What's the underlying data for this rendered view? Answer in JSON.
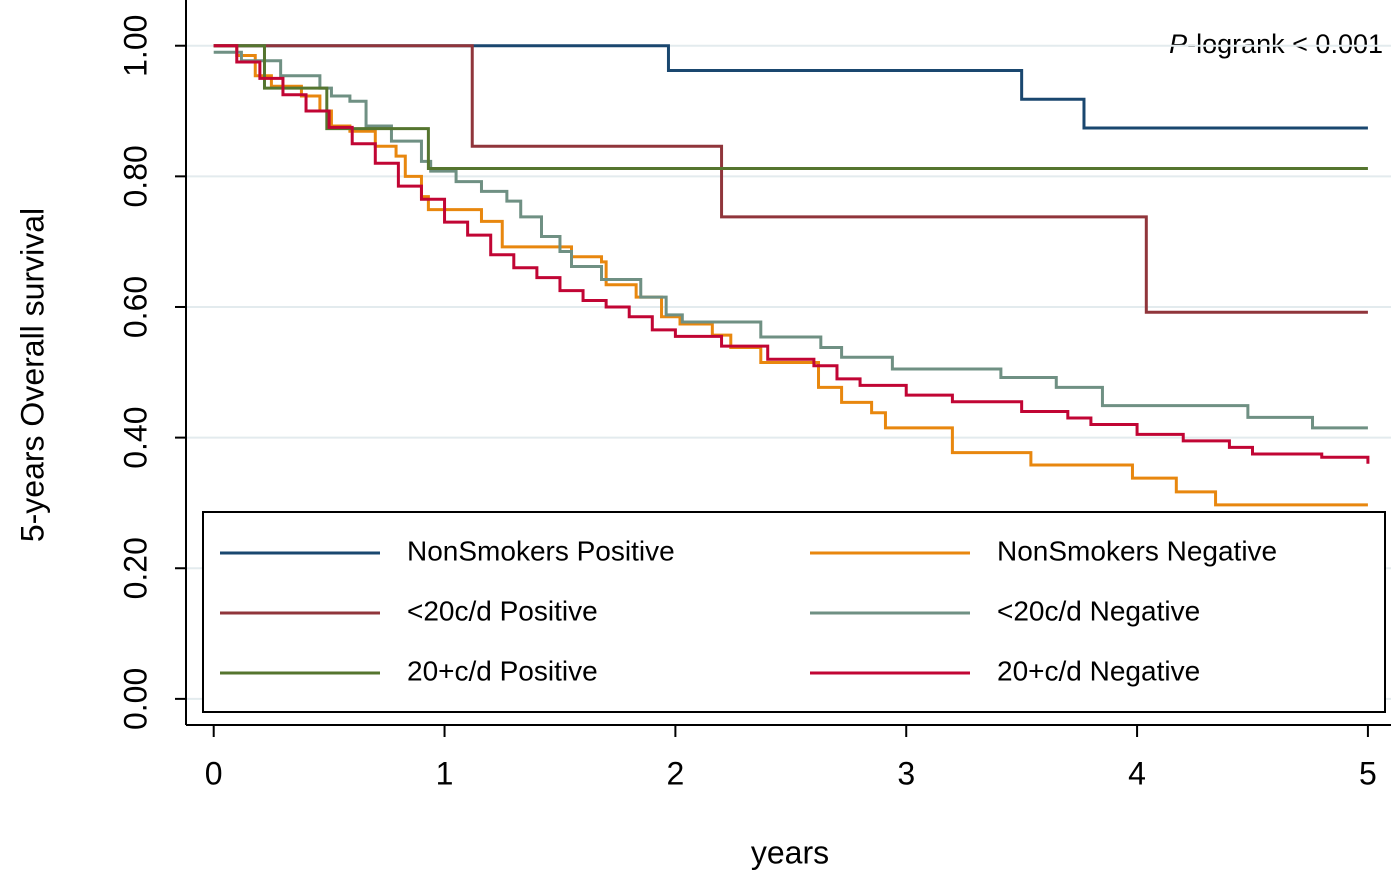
{
  "chart_data": {
    "type": "step",
    "xlabel": "years",
    "ylabel": "5-years Overall survival",
    "annotation": [
      "P",
      "-logrank < 0.001"
    ],
    "xlim": [
      -0.12,
      5.1
    ],
    "ylim": [
      -0.04,
      1.07
    ],
    "xticks": [
      0,
      1,
      2,
      3,
      4,
      5
    ],
    "yticks": [
      {
        "value": 0,
        "label": "0.00"
      },
      {
        "value": 0.2,
        "label": "0.20"
      },
      {
        "value": 0.4,
        "label": "0.40"
      },
      {
        "value": 0.6,
        "label": "0.60"
      },
      {
        "value": 0.8,
        "label": "0.80"
      },
      {
        "value": 1,
        "label": "1.00"
      }
    ],
    "grid": true,
    "legend": "bottom",
    "series": [
      {
        "name": "NonSmokers Positive",
        "color": "#1a476f",
        "x": [
          0,
          1.97,
          3.5,
          3.77,
          5
        ],
        "values": [
          1.0,
          0.962,
          0.918,
          0.874,
          0.874
        ]
      },
      {
        "name": "NonSmokers Negative",
        "color": "#e8870e",
        "x": [
          0,
          0.1,
          0.18,
          0.25,
          0.38,
          0.46,
          0.51,
          0.59,
          0.7,
          0.79,
          0.83,
          0.9,
          0.93,
          1.16,
          1.25,
          1.55,
          1.68,
          1.7,
          1.83,
          1.94,
          2.02,
          2.16,
          2.24,
          2.37,
          2.62,
          2.72,
          2.85,
          2.91,
          3.2,
          3.54,
          3.98,
          4.17,
          4.34,
          5
        ],
        "values": [
          1.0,
          0.985,
          0.954,
          0.938,
          0.923,
          0.9,
          0.877,
          0.869,
          0.846,
          0.831,
          0.8,
          0.769,
          0.749,
          0.731,
          0.692,
          0.677,
          0.669,
          0.634,
          0.615,
          0.585,
          0.574,
          0.557,
          0.538,
          0.515,
          0.477,
          0.454,
          0.438,
          0.415,
          0.377,
          0.358,
          0.338,
          0.317,
          0.297,
          0.297
        ]
      },
      {
        "name": "<20c/d Positive",
        "color": "#90353b",
        "x": [
          0,
          1.12,
          2.2,
          4.04,
          5
        ],
        "values": [
          1.0,
          0.846,
          0.738,
          0.592,
          0.592
        ]
      },
      {
        "name": "<20c/d Negative",
        "color": "#6f9083",
        "x": [
          0,
          0.12,
          0.29,
          0.46,
          0.51,
          0.59,
          0.66,
          0.77,
          0.9,
          0.94,
          1.05,
          1.16,
          1.27,
          1.33,
          1.42,
          1.5,
          1.55,
          1.68,
          1.85,
          1.96,
          2.03,
          2.37,
          2.63,
          2.72,
          2.94,
          3.41,
          3.65,
          3.85,
          4.48,
          4.76,
          5
        ],
        "values": [
          0.99,
          0.977,
          0.954,
          0.935,
          0.923,
          0.915,
          0.877,
          0.854,
          0.823,
          0.808,
          0.792,
          0.777,
          0.762,
          0.738,
          0.708,
          0.685,
          0.662,
          0.642,
          0.615,
          0.588,
          0.577,
          0.554,
          0.538,
          0.523,
          0.505,
          0.492,
          0.477,
          0.449,
          0.431,
          0.415,
          0.415
        ]
      },
      {
        "name": "20+c/d Positive",
        "color": "#55752f",
        "x": [
          0,
          0.22,
          0.49,
          0.93,
          5
        ],
        "values": [
          1.0,
          0.935,
          0.873,
          0.812,
          0.812
        ]
      },
      {
        "name": "20+c/d Negative",
        "color": "#c10534",
        "x": [
          0,
          0.1,
          0.2,
          0.3,
          0.4,
          0.5,
          0.6,
          0.7,
          0.8,
          0.9,
          1.0,
          1.1,
          1.2,
          1.3,
          1.4,
          1.5,
          1.6,
          1.7,
          1.8,
          1.9,
          2.0,
          2.2,
          2.4,
          2.6,
          2.7,
          2.8,
          3.0,
          3.2,
          3.5,
          3.7,
          3.8,
          4.0,
          4.2,
          4.4,
          4.5,
          4.8,
          5.0
        ],
        "values": [
          1.0,
          0.975,
          0.95,
          0.925,
          0.9,
          0.875,
          0.85,
          0.82,
          0.785,
          0.765,
          0.73,
          0.71,
          0.68,
          0.66,
          0.645,
          0.625,
          0.61,
          0.6,
          0.585,
          0.565,
          0.555,
          0.54,
          0.52,
          0.51,
          0.49,
          0.48,
          0.465,
          0.455,
          0.44,
          0.43,
          0.42,
          0.405,
          0.395,
          0.385,
          0.375,
          0.37,
          0.36
        ]
      }
    ]
  }
}
